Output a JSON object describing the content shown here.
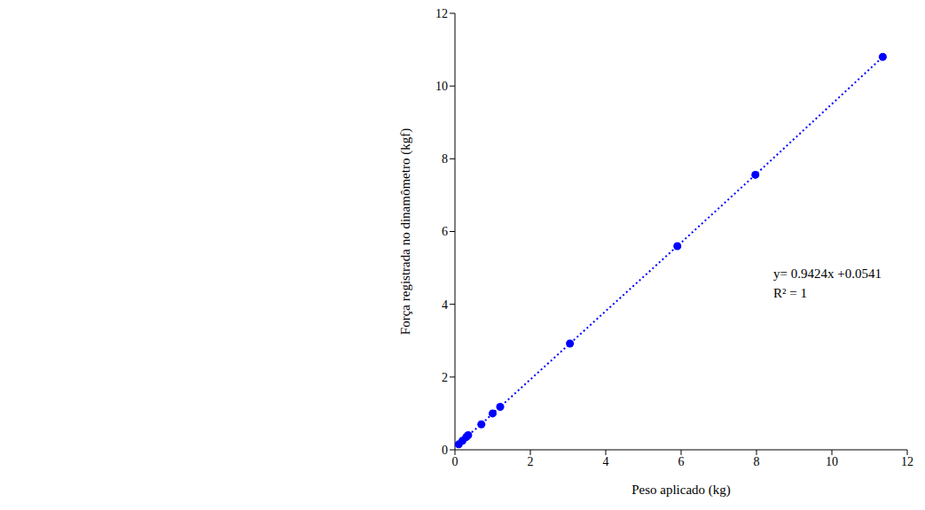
{
  "chart_data": {
    "type": "scatter",
    "x_label": "Peso aplicado (kg)",
    "y_label": "Força registrada no dinamômetro (kgf)",
    "annotations": [
      "y= 0.9424x +0.0541",
      "R² = 1"
    ],
    "series": [
      {
        "name": "Força registrada",
        "color": "#0000ff",
        "marker": "circle",
        "line_style": "dotted",
        "x": [
          0.1,
          0.2,
          0.3,
          0.35,
          0.7,
          1.0,
          1.2,
          3.05,
          5.9,
          7.97,
          11.35
        ],
        "values": [
          0.15,
          0.25,
          0.35,
          0.4,
          0.7,
          1.0,
          1.18,
          2.92,
          5.6,
          7.56,
          10.8
        ]
      }
    ],
    "xlim": [
      0,
      12
    ],
    "xticks": [
      0,
      2,
      4,
      6,
      8,
      10,
      12
    ],
    "ylim": [
      0,
      12
    ],
    "yticks": [
      0,
      2,
      4,
      6,
      8,
      10,
      12
    ],
    "grid": false
  }
}
